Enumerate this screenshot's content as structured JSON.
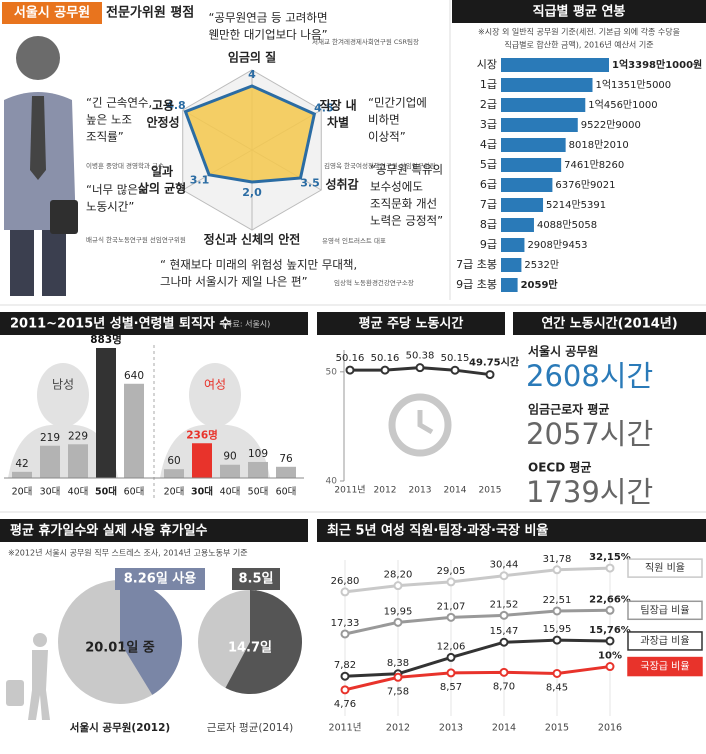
{
  "chart_data": [
    {
      "type": "radar",
      "title_highlight": "서울시 공무원",
      "title": "전문가위원 평점",
      "axes": [
        [
          "임금의 질"
        ],
        [
          "직장 내",
          "차별"
        ],
        [
          "성취감"
        ],
        [
          "정신과 신체의 안전"
        ],
        [
          "일과",
          "삶의 균형"
        ],
        [
          "고용",
          "안정성"
        ]
      ],
      "values": [
        4,
        4.5,
        3.5,
        2.0,
        3.1,
        4.8
      ],
      "value_labels": [
        "4",
        "4.5",
        "3.5",
        "2,0",
        "3.1",
        "4.8"
      ],
      "rlim": [
        0,
        5
      ],
      "rticks": [
        1,
        2,
        3,
        4,
        5
      ],
      "color": "#2b6ca3",
      "fill": "#f5c84c",
      "comments": [
        {
          "lines": [
            "“공무원연금 등 고려하면",
            "웬만한 대기업보다 나음”"
          ],
          "source": "서재교 한겨레경제사회연구원 CSR팀장"
        },
        {
          "lines": [
            "“민간기업에",
            "비하면",
            "이상적”"
          ],
          "source": "김영옥 한국여성정책연구원 선임연구위원"
        },
        {
          "lines": [
            "“공무원 특유의",
            "보수성에도",
            "조직문화 개선",
            "노력은 긍정적”"
          ],
          "source": "유영석 인트러스트 대표"
        },
        {
          "lines": [
            "“ 현재보다 미래의 위험성 높지만 무대책,",
            "그나마 서울시가 제일 나은 편”"
          ],
          "source": "임상혁 노동환경건강연구소장"
        },
        {
          "lines": [
            "“너무 많은",
            "노동시간”"
          ],
          "source": "배규식 한국노동연구원 선임연구위원"
        },
        {
          "lines": [
            "“긴 근속연수,",
            "높은 노조",
            "조직률”"
          ],
          "source": "이병훈 중앙대 경영학과 교수"
        }
      ]
    },
    {
      "type": "bar",
      "orientation": "horizontal",
      "title": "직급별 평균 연봉",
      "note": [
        "※시장 외 일반직 공무원 기준(세전. 기본급 외에 각종 수당을",
        "직급별로 합산한 금액), 2016년 예산서 기준"
      ],
      "categories": [
        "시장",
        "1급",
        "2급",
        "3급",
        "4급",
        "5급",
        "6급",
        "7급",
        "8급",
        "9급",
        "7급 초봉",
        "9급 초봉"
      ],
      "values": [
        133981000,
        113515000,
        104561000,
        95229000,
        80182010,
        74618260,
        63769021,
        52145391,
        40885058,
        29089453,
        25320000,
        20590000
      ],
      "value_labels": [
        "1억3398만1000원",
        "1억1351만5000",
        "1억456만1000",
        "9522만9000",
        "8018만2010",
        "7461만8260",
        "6376만9021",
        "5214만5391",
        "4088만5058",
        "2908만9453",
        "2532만",
        "2059만"
      ],
      "color": "#2a7ab8"
    },
    {
      "type": "grouped_bar",
      "title": "2011~2015년 성별·연령별 퇴직자 수",
      "source": "(자료: 서울시)",
      "groups": [
        {
          "name": "남성",
          "categories": [
            "20대",
            "30대",
            "40대",
            "50대",
            "60대"
          ],
          "values": [
            42,
            219,
            229,
            883,
            640
          ],
          "value_labels": [
            "42",
            "219",
            "229",
            "883명",
            "640"
          ],
          "colors": [
            "#b3b3b3",
            "#b3b3b3",
            "#b3b3b3",
            "#333333",
            "#b3b3b3"
          ]
        },
        {
          "name": "여성",
          "categories": [
            "20대",
            "30대",
            "40대",
            "50대",
            "60대"
          ],
          "values": [
            60,
            236,
            90,
            109,
            76
          ],
          "value_labels": [
            "60",
            "236명",
            "90",
            "109",
            "76"
          ],
          "colors": [
            "#b3b3b3",
            "#e8332b",
            "#b3b3b3",
            "#b3b3b3",
            "#b3b3b3"
          ]
        }
      ]
    },
    {
      "type": "line",
      "title": "평균 주당 노동시간",
      "x": [
        "2011년",
        "2012",
        "2013",
        "2014",
        "2015"
      ],
      "values": [
        50.16,
        50.16,
        50.38,
        50.15,
        49.75
      ],
      "value_labels": [
        "50.16",
        "50.16",
        "50.38",
        "50.15",
        "49.75시간"
      ],
      "ylim": [
        40,
        52
      ],
      "yticks": [
        40,
        50
      ],
      "color": "#333333"
    },
    {
      "type": "stat",
      "title": "연간 노동시간(2014년)",
      "categories": [
        "서울시 공무원",
        "임금근로자 평균",
        "OECD 평균"
      ],
      "values": [
        2608,
        2057,
        1739
      ],
      "value_labels": [
        "2608시간",
        "2057시간",
        "1739시간"
      ],
      "colors": [
        "#2a7ab8",
        "#666666",
        "#666666"
      ]
    },
    {
      "type": "pie",
      "title": "평균 휴가일수와 실제 사용 휴가일수",
      "note": "※2012년 서울시 공무원 직무 스트레스 조사, 2014년 고용노동부 기준",
      "pies": [
        {
          "label": "서울시 공무원(2012)",
          "total": 20.01,
          "total_label": "20.01일 중",
          "used": 8.26,
          "used_label": "8.26일 사용",
          "color": "#7a86a6"
        },
        {
          "label": "근로자 평균(2014)",
          "total": 14.7,
          "total_label": "14.7일",
          "used": 8.5,
          "used_label": "8.5일",
          "color": "#555555"
        }
      ]
    },
    {
      "type": "line",
      "title": "최근 5년 여성 직원·팀장·과장·국장 비율",
      "x": [
        "2011년",
        "2012",
        "2013",
        "2014",
        "2015",
        "2016"
      ],
      "ylim": [
        0,
        36
      ],
      "series": [
        {
          "name": "직원 비율",
          "color": "#c9c9c9",
          "values": [
            26.8,
            28.2,
            29.05,
            30.44,
            31.78,
            32.15
          ],
          "value_labels": [
            "26,80",
            "28,20",
            "29,05",
            "30,44",
            "31,78",
            "32,15%"
          ]
        },
        {
          "name": "팀장급 비율",
          "color": "#999999",
          "values": [
            17.33,
            19.95,
            21.07,
            21.52,
            22.51,
            22.66
          ],
          "value_labels": [
            "17,33",
            "19,95",
            "21,07",
            "21,52",
            "22,51",
            "22,66%"
          ]
        },
        {
          "name": "과장급 비율",
          "color": "#333333",
          "values": [
            7.82,
            8.38,
            12.06,
            15.47,
            15.95,
            15.76
          ],
          "value_labels": [
            "7,82",
            "8,38",
            "12,06",
            "15,47",
            "15,95",
            "15,76%"
          ]
        },
        {
          "name": "국장급 비율",
          "color": "#e8332b",
          "values": [
            4.76,
            7.58,
            8.57,
            8.7,
            8.45,
            10
          ],
          "value_labels": [
            "4,76",
            "7,58",
            "8,57",
            "8,70",
            "8,45",
            "10%"
          ]
        }
      ]
    }
  ]
}
